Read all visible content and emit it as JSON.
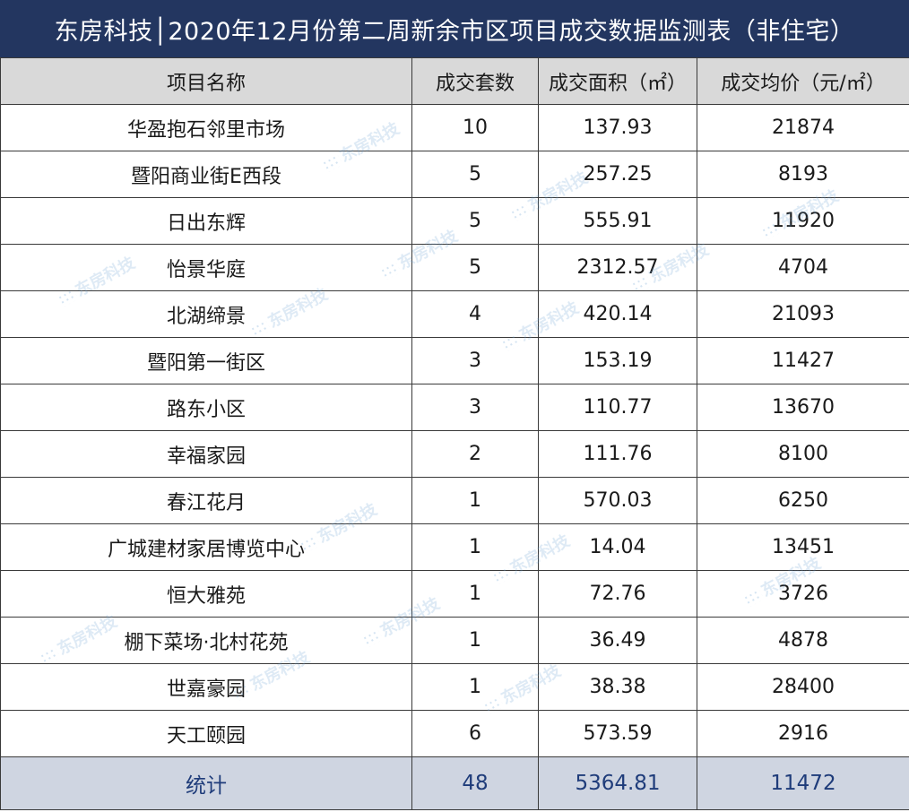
{
  "title": "东房科技│2020年12月份第二周新余市区项目成交数据监测表（非住宅）",
  "table": {
    "headers": [
      "项目名称",
      "成交套数",
      "成交面积（㎡）",
      "成交均价（元/㎡）"
    ],
    "rows": [
      [
        "华盈抱石邻里市场",
        "10",
        "137.93",
        "21874"
      ],
      [
        "暨阳商业街E西段",
        "5",
        "257.25",
        "8193"
      ],
      [
        "日出东辉",
        "5",
        "555.91",
        "11920"
      ],
      [
        "怡景华庭",
        "5",
        "2312.57",
        "4704"
      ],
      [
        "北湖缔景",
        "4",
        "420.14",
        "21093"
      ],
      [
        "暨阳第一街区",
        "3",
        "153.19",
        "11427"
      ],
      [
        "路东小区",
        "3",
        "110.77",
        "13670"
      ],
      [
        "幸福家园",
        "2",
        "111.76",
        "8100"
      ],
      [
        "春江花月",
        "1",
        "570.03",
        "6250"
      ],
      [
        "广城建材家居博览中心",
        "1",
        "14.04",
        "13451"
      ],
      [
        "恒大雅苑",
        "1",
        "72.76",
        "3726"
      ],
      [
        "棚下菜场·北村花苑",
        "1",
        "36.49",
        "4878"
      ],
      [
        "世嘉豪园",
        "1",
        "38.38",
        "28400"
      ],
      [
        "天工颐园",
        "6",
        "573.59",
        "2916"
      ]
    ],
    "total": [
      "统计",
      "48",
      "5364.81",
      "11472"
    ]
  },
  "watermark_text": "东房科技",
  "colors": {
    "title_bg": "#233660",
    "header_bg": "#d9d9d9",
    "total_bg": "#cfd5e1",
    "total_text": "#1f3c7a"
  }
}
